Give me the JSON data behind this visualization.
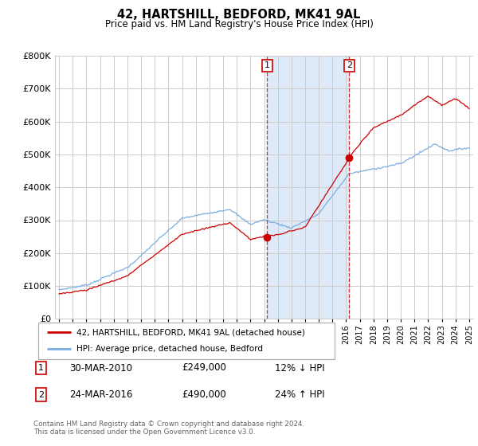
{
  "title": "42, HARTSHILL, BEDFORD, MK41 9AL",
  "subtitle": "Price paid vs. HM Land Registry's House Price Index (HPI)",
  "ylim": [
    0,
    800000
  ],
  "xlim_start": 1994.7,
  "xlim_end": 2025.3,
  "property_color": "#cc0000",
  "hpi_color": "#7aade0",
  "shaded_color": "#deeaf8",
  "shaded_region": [
    2010.22,
    2016.22
  ],
  "transaction1_x": 2010.22,
  "transaction1_y": 249000,
  "transaction2_x": 2016.22,
  "transaction2_y": 490000,
  "legend_line1": "42, HARTSHILL, BEDFORD, MK41 9AL (detached house)",
  "legend_line2": "HPI: Average price, detached house, Bedford",
  "table_row1_num": "1",
  "table_row1_date": "30-MAR-2010",
  "table_row1_price": "£249,000",
  "table_row1_hpi": "12% ↓ HPI",
  "table_row2_num": "2",
  "table_row2_date": "24-MAR-2016",
  "table_row2_price": "£490,000",
  "table_row2_hpi": "24% ↑ HPI",
  "footnote": "Contains HM Land Registry data © Crown copyright and database right 2024.\nThis data is licensed under the Open Government Licence v3.0.",
  "grid_color": "#cccccc"
}
